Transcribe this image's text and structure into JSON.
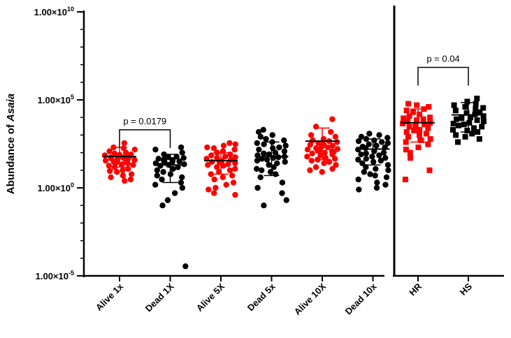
{
  "chart_data": {
    "type": "scatter",
    "subtype": "dot-plot-with-mean-and-sd",
    "title": "",
    "xlabel": "",
    "ylabel_parts": [
      "Abundance of ",
      "Asaia"
    ],
    "yscale": "log",
    "ylim": [
      1e-05,
      10000000000
    ],
    "y_ticks": [
      {
        "value": 10000000000,
        "mant": "1.00×10",
        "exp": "10"
      },
      {
        "value": 100000,
        "mant": "1.00×10",
        "exp": "5"
      },
      {
        "value": 1,
        "mant": "1.00×10",
        "exp": "0"
      },
      {
        "value": 1e-05,
        "mant": "1.00×10",
        "exp": "-5"
      }
    ],
    "grid": false,
    "legend": "none",
    "colors": {
      "red": "#ff0000",
      "black": "#000000"
    },
    "divider_after": "Dead 10x",
    "categories": [
      {
        "label": "Alive 1x",
        "color": "red",
        "marker": "circle",
        "mean": 60,
        "sd_low": 15,
        "sd_high": 200,
        "values": [
          350,
          200,
          180,
          150,
          120,
          100,
          90,
          80,
          75,
          70,
          65,
          60,
          55,
          50,
          48,
          45,
          40,
          38,
          35,
          32,
          30,
          28,
          25,
          22,
          20,
          18,
          15,
          12,
          10,
          9,
          8,
          6,
          5,
          4,
          3,
          2.5
        ]
      },
      {
        "label": "Dead 1X",
        "color": "black",
        "marker": "circle",
        "mean": 20,
        "sd_low": 2,
        "sd_high": 80,
        "values": [
          200,
          150,
          100,
          80,
          60,
          55,
          50,
          45,
          40,
          38,
          35,
          32,
          30,
          28,
          25,
          22,
          20,
          18,
          15,
          12,
          10,
          8,
          6,
          5,
          4,
          3,
          2,
          1.5,
          1,
          0.5,
          0.2,
          0.1,
          3.5e-05
        ]
      },
      {
        "label": "Alive 5X",
        "color": "red",
        "marker": "circle",
        "mean": 35,
        "sd_low": 6,
        "sd_high": 100,
        "values": [
          350,
          300,
          250,
          200,
          180,
          150,
          120,
          100,
          80,
          70,
          60,
          55,
          50,
          45,
          40,
          35,
          30,
          28,
          25,
          22,
          20,
          18,
          15,
          12,
          10,
          8,
          6,
          5,
          4,
          3,
          2,
          1.5,
          1,
          0.8,
          0.5,
          0.4
        ]
      },
      {
        "label": "Dead 5x",
        "color": "black",
        "marker": "circle",
        "mean": 60,
        "sd_low": 5,
        "sd_high": 400,
        "values": [
          2000,
          1500,
          1000,
          800,
          600,
          500,
          400,
          350,
          300,
          250,
          200,
          180,
          150,
          120,
          100,
          90,
          80,
          70,
          60,
          55,
          50,
          45,
          40,
          35,
          30,
          25,
          20,
          15,
          12,
          10,
          8,
          6,
          4,
          2,
          1,
          0.5,
          0.2,
          0.1
        ]
      },
      {
        "label": "Alive 10X",
        "color": "red",
        "marker": "circle",
        "mean": 450,
        "sd_low": 40,
        "sd_high": 2500,
        "values": [
          8000,
          3000,
          1500,
          1000,
          800,
          600,
          500,
          450,
          400,
          350,
          300,
          280,
          250,
          220,
          200,
          180,
          160,
          150,
          140,
          130,
          120,
          110,
          100,
          90,
          80,
          70,
          60,
          50,
          45,
          40,
          35,
          30,
          25,
          20,
          15,
          12,
          10,
          8
        ]
      },
      {
        "label": "Dead 10x",
        "color": "black",
        "marker": "circle",
        "mean": 160,
        "sd_low": 20,
        "sd_high": 600,
        "values": [
          1200,
          1000,
          800,
          700,
          600,
          500,
          450,
          400,
          350,
          300,
          250,
          220,
          200,
          180,
          150,
          120,
          100,
          90,
          80,
          70,
          60,
          50,
          45,
          40,
          35,
          30,
          25,
          20,
          15,
          12,
          10,
          8,
          6,
          5,
          4,
          3,
          2,
          1.5,
          1,
          0.8
        ]
      }
    ],
    "groups_right": [
      {
        "label": "HR",
        "color": "red",
        "marker": "square",
        "mean": 5000,
        "sd_low": 400,
        "sd_high": 30000,
        "values": [
          60000,
          50000,
          40000,
          30000,
          25000,
          20000,
          15000,
          12000,
          10000,
          9000,
          8000,
          7000,
          6000,
          5000,
          4500,
          4000,
          3500,
          3000,
          2500,
          2000,
          1800,
          1500,
          1200,
          1000,
          800,
          600,
          500,
          400,
          300,
          200,
          150,
          100,
          50,
          10,
          3
        ]
      },
      {
        "label": "HS",
        "color": "black",
        "marker": "square",
        "mean": 14000,
        "sd_low": 1500,
        "sd_high": 70000,
        "values": [
          120000,
          80000,
          60000,
          50000,
          40000,
          35000,
          30000,
          25000,
          20000,
          18000,
          15000,
          12000,
          10000,
          9000,
          8000,
          7000,
          6000,
          5000,
          4500,
          4000,
          3500,
          3000,
          2500,
          2000,
          1800,
          1500,
          1200,
          1000,
          800,
          600,
          400
        ]
      }
    ],
    "annotations": [
      {
        "text": "p = 0.0179",
        "from": "Alive 1x",
        "to": "Dead 1X",
        "bracket_y": 2000
      },
      {
        "text": "p = 0.04",
        "from": "HR",
        "to": "HS",
        "bracket_y": 7000000
      }
    ]
  }
}
